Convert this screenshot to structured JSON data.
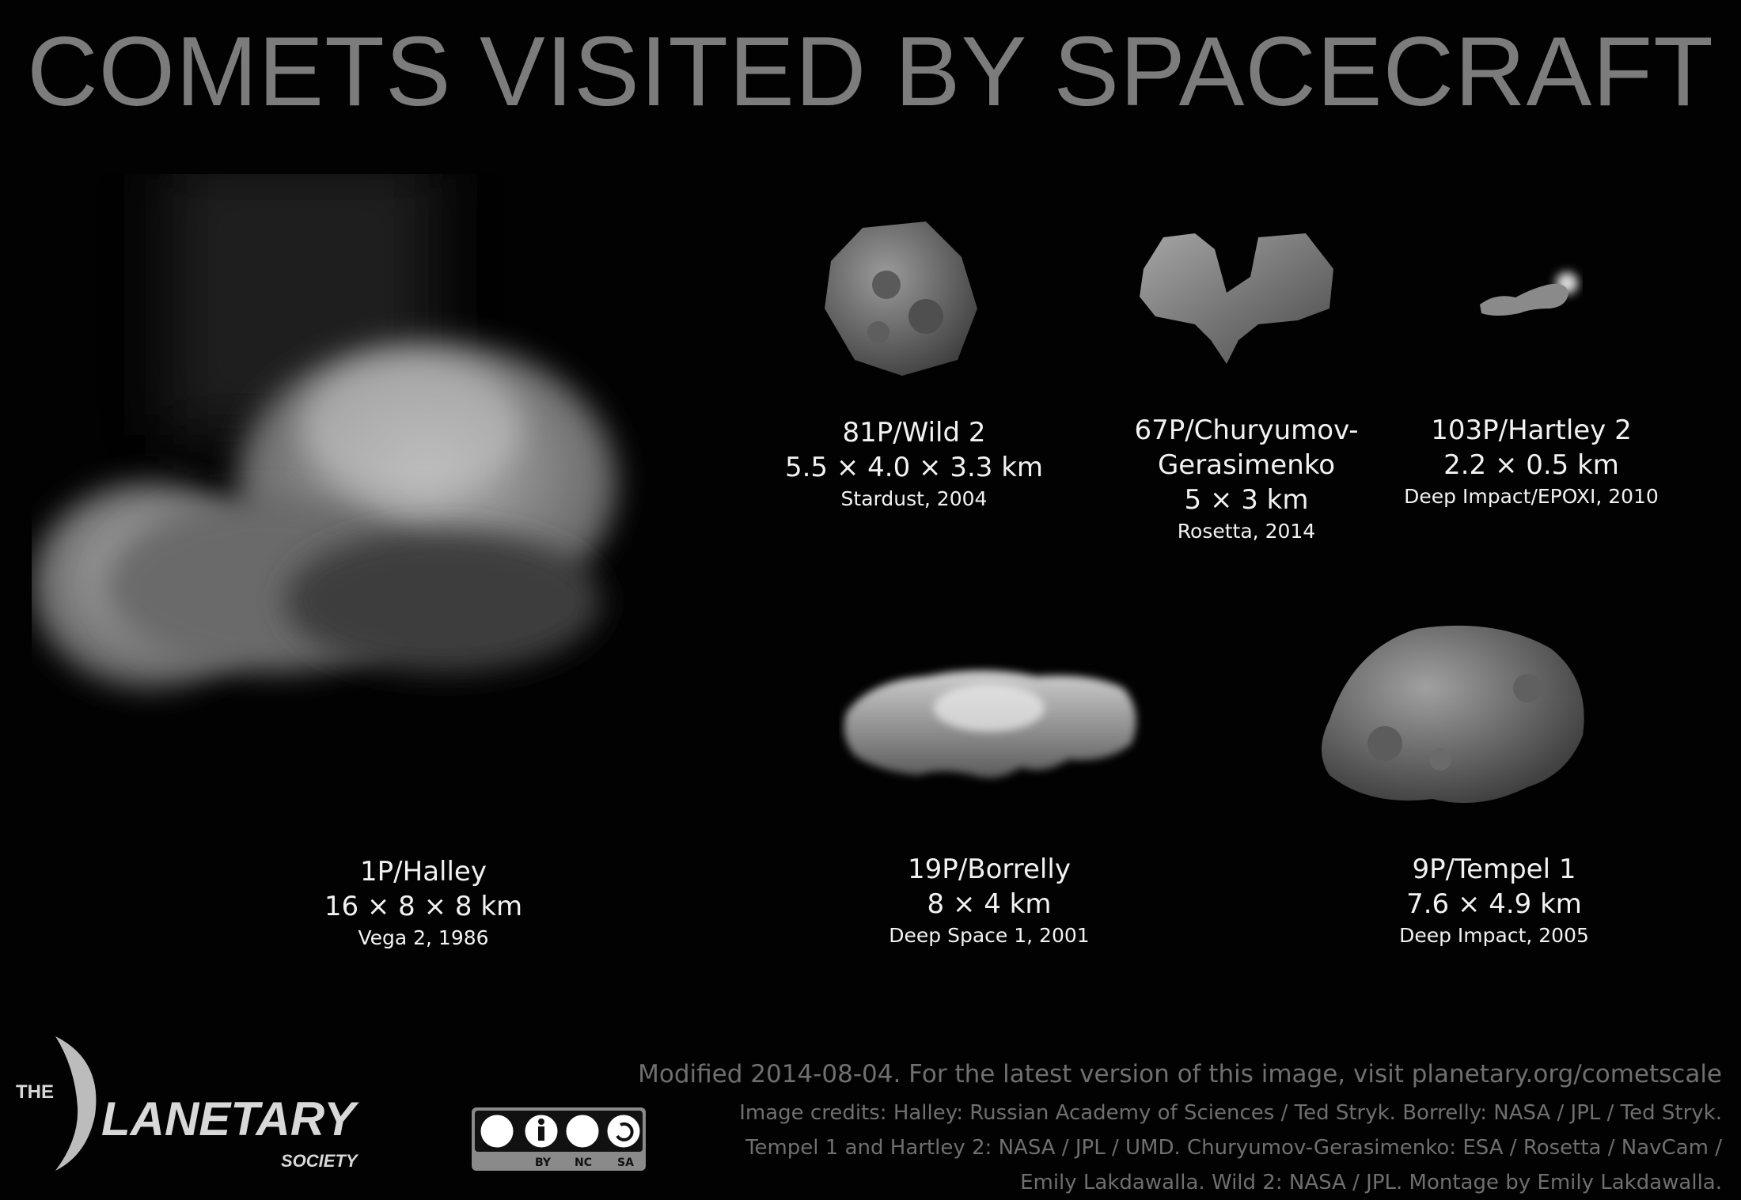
{
  "title": "COMETS VISITED BY SPACECRAFT",
  "comets": [
    {
      "name": "1P/Halley",
      "dims": "16 × 8 × 8 km",
      "mission": "Vega 2, 1986"
    },
    {
      "name": "81P/Wild 2",
      "dims": "5.5 × 4.0 × 3.3 km",
      "mission": "Stardust, 2004"
    },
    {
      "name_line1": "67P/Churyumov-",
      "name_line2": "Gerasimenko",
      "dims": "5 × 3 km",
      "mission": "Rosetta, 2014"
    },
    {
      "name": "103P/Hartley 2",
      "dims": "2.2 × 0.5 km",
      "mission": "Deep Impact/EPOXI, 2010"
    },
    {
      "name": "19P/Borrelly",
      "dims": "8 × 4 km",
      "mission": "Deep Space 1, 2001"
    },
    {
      "name": "9P/Tempel 1",
      "dims": "7.6 × 4.9 km",
      "mission": "Deep Impact, 2005"
    }
  ],
  "footer": {
    "modified": "Modified 2014-08-04. For the latest version of this image, visit planetary.org/cometscale",
    "credits": [
      "Image credits: Halley: Russian Academy of Sciences / Ted Stryk. Borrelly: NASA / JPL / Ted Stryk.",
      "Tempel 1 and Hartley 2: NASA / JPL / UMD.  Churyumov-Gerasimenko: ESA / Rosetta / NavCam /",
      "Emily Lakdawalla. Wild 2: NASA / JPL. Montage by Emily Lakdawalla."
    ]
  },
  "logo": {
    "the": "THE",
    "planetary": "LANETARY",
    "society": "SOCIETY"
  },
  "license": {
    "by": "BY",
    "nc": "NC",
    "sa": "SA"
  }
}
